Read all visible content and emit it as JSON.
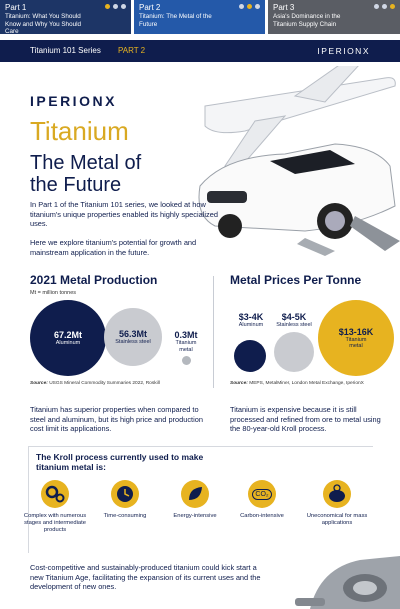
{
  "tabs": [
    {
      "part": "Part 1",
      "title": "Titanium: What You Should Know and Why You Should Care"
    },
    {
      "part": "Part 2",
      "title": "Titanium: The Metal of the Future"
    },
    {
      "part": "Part 3",
      "title": "Asia's Dominance in the Titanium Supply Chain"
    }
  ],
  "banner": {
    "series": "Titanium 101 Series",
    "part": "PART 2",
    "brand": "IPERIONX"
  },
  "hero": {
    "logo": "IPERIONX",
    "title": "Titanium",
    "subtitle": "The Metal of the Future"
  },
  "intro": [
    "In Part 1 of the Titanium 101 series, we looked at how titanium's unique properties enabled its highly specialized uses.",
    "Here we explore titanium's potential for growth and mainstream application in the future."
  ],
  "production": {
    "title": "2021 Metal Production",
    "note": "Mt = million tonnes",
    "items": [
      {
        "value": "67.2Mt",
        "label": "Aluminum"
      },
      {
        "value": "56.3Mt",
        "label": "Stainless steel"
      },
      {
        "value": "0.3Mt",
        "label": "Titanium metal"
      }
    ],
    "source_label": "Source:",
    "source": "USGS Mineral Commodity Summaries 2022, Roskill"
  },
  "prices": {
    "title": "Metal Prices Per Tonne",
    "items": [
      {
        "value": "$3-4K",
        "label": "Aluminum"
      },
      {
        "value": "$4-5K",
        "label": "Stainless steel"
      },
      {
        "value": "$13-16K",
        "label": "Titanium metal"
      }
    ],
    "source_label": "Source:",
    "source": "MEPS, MetalMiner, London Metal Exchange, IperionX"
  },
  "comparison": [
    "Titanium has superior properties when compared to steel and aluminum, but its high price and production cost limit its applications.",
    "Titanium is expensive because it is still processed and refined from ore to metal using the 80-year-old Kroll process."
  ],
  "kroll": {
    "title": "The Kroll process currently used to make titanium metal is:",
    "items": [
      "Complex with numerous stages and intermediate products",
      "Time-consuming",
      "Energy-intensive",
      "Carbon-intensive",
      "Uneconomical for mass applications"
    ],
    "co2": "CO₂"
  },
  "conclusion": "Cost-competitive and sustainably-produced titanium could kick start a new Titanium Age, facilitating the expansion of its current uses and the development of new ones."
}
